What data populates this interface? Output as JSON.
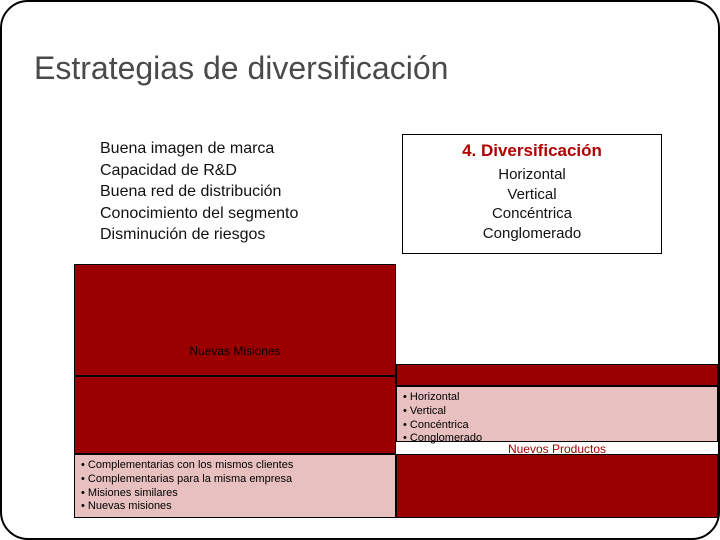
{
  "title": "Estrategias de diversificación",
  "topLeftList": {
    "items": [
      "Buena imagen de marca",
      "Capacidad de R&D",
      "Buena red de distribución",
      "Conocimiento del segmento",
      "Disminución de riesgos"
    ]
  },
  "topRightBox": {
    "heading": "4. Diversificación",
    "items": [
      "Horizontal",
      "Vertical",
      "Concéntrica",
      "Conglomerado"
    ],
    "headingColor": "#b00000",
    "borderColor": "#000000"
  },
  "labels": {
    "nuevasMisiones": "Nuevas Misiones",
    "nuevosProductos": "Nuevos Productos"
  },
  "pinkBoxRight": {
    "items": [
      "Horizontal",
      "Vertical",
      "Concéntrica",
      "Conglomerado"
    ]
  },
  "pinkBoxLeft": {
    "items": [
      "Complementarias con los mismos clientes",
      "Complementarias para la misma empresa",
      "Misiones similares",
      "Nuevas misiones"
    ]
  },
  "colors": {
    "darkRed": "#9b0000",
    "pink": "#e8c0c0",
    "titleColor": "#4a4a4a",
    "nuevosProductosColor": "#9b0000"
  }
}
